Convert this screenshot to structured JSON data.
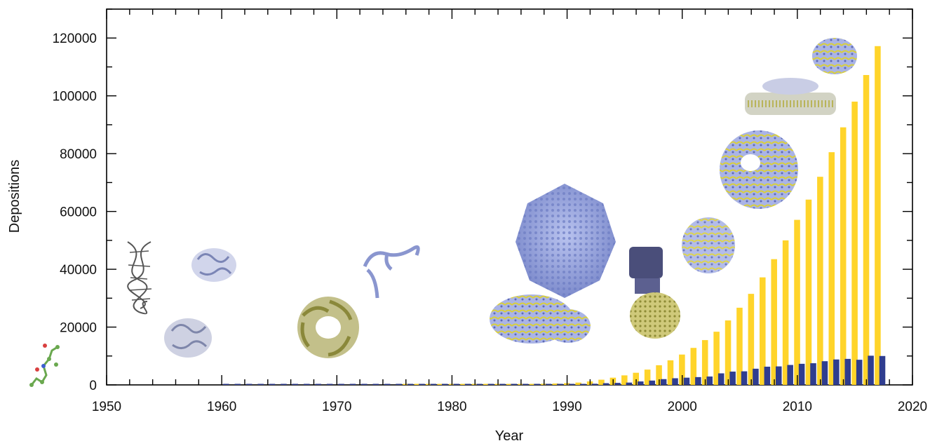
{
  "chart_data": {
    "type": "bar",
    "xlabel": "Year",
    "ylabel": "Depositions",
    "xlim": [
      1950,
      2020
    ],
    "ylim": [
      0,
      130000
    ],
    "x_ticks": [
      1950,
      1960,
      1970,
      1980,
      1990,
      2000,
      2010,
      2020
    ],
    "y_ticks": [
      0,
      20000,
      40000,
      60000,
      80000,
      100000,
      120000
    ],
    "grid": false,
    "legend": "none",
    "colors": {
      "total": "#FFD42A",
      "annual": "#2F3D8F",
      "frame": "#000000"
    },
    "series": [
      {
        "key": "total",
        "x": [
          1976,
          1977,
          1978,
          1979,
          1980,
          1981,
          1982,
          1983,
          1984,
          1985,
          1986,
          1987,
          1988,
          1989,
          1990,
          1991,
          1992,
          1993,
          1994,
          1995,
          1996,
          1997,
          1998,
          1999,
          2000,
          2001,
          2002,
          2003,
          2004,
          2005,
          2006,
          2007,
          2008,
          2009,
          2010,
          2011,
          2012,
          2013,
          2014,
          2015,
          2016,
          2017
        ],
        "values": [
          60,
          70,
          80,
          100,
          120,
          150,
          180,
          200,
          230,
          260,
          300,
          350,
          400,
          480,
          600,
          800,
          1200,
          1800,
          2500,
          3300,
          4200,
          5300,
          6800,
          8500,
          10500,
          12800,
          15500,
          18400,
          22300,
          26700,
          31500,
          37200,
          43500,
          50000,
          57100,
          64100,
          72000,
          80500,
          89100,
          98000,
          107200,
          117200
        ]
      },
      {
        "key": "annual",
        "x": [
          1960,
          1961,
          1962,
          1963,
          1964,
          1965,
          1966,
          1967,
          1968,
          1969,
          1970,
          1971,
          1972,
          1973,
          1974,
          1975,
          1976,
          1977,
          1978,
          1979,
          1980,
          1981,
          1982,
          1983,
          1984,
          1985,
          1986,
          1987,
          1988,
          1989,
          1990,
          1991,
          1992,
          1993,
          1994,
          1995,
          1996,
          1997,
          1998,
          1999,
          2000,
          2001,
          2002,
          2003,
          2004,
          2005,
          2006,
          2007,
          2008,
          2009,
          2010,
          2011,
          2012,
          2013,
          2014,
          2015,
          2016,
          2017
        ],
        "values": [
          40,
          40,
          40,
          40,
          40,
          40,
          40,
          40,
          40,
          40,
          40,
          40,
          40,
          40,
          40,
          40,
          40,
          40,
          40,
          40,
          40,
          40,
          40,
          40,
          40,
          40,
          40,
          40,
          60,
          80,
          150,
          200,
          400,
          600,
          700,
          800,
          1200,
          1500,
          2000,
          2300,
          2500,
          2700,
          2900,
          4000,
          4600,
          4700,
          5600,
          6300,
          6400,
          6900,
          7300,
          7500,
          8200,
          8800,
          9000,
          8700,
          10100,
          10000
        ]
      }
    ]
  },
  "images": {
    "structure_icons": [
      "molecule-small",
      "dna-helix",
      "protein-globule-1",
      "protein-globule-2",
      "protein-ring",
      "trna",
      "ribosome-complex",
      "virus-capsid",
      "channel-stack",
      "membrane-protein",
      "large-complex",
      "membrane-bilayer-complex",
      "top-protein"
    ]
  }
}
